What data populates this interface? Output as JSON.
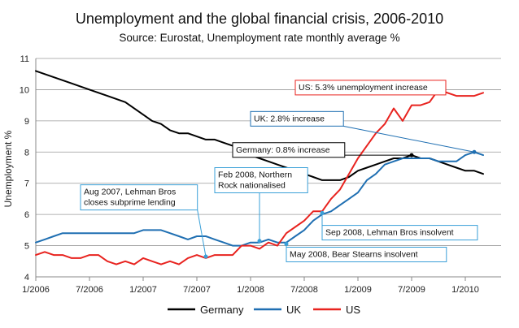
{
  "chart_data": {
    "type": "line",
    "title": "Unemployment and the global financial crisis, 2006-2010",
    "subtitle": "Source: Eurostat, Unemployment rate monthly average %",
    "xlabel": "",
    "ylabel": "Unemployment  %",
    "ylim": [
      4,
      11
    ],
    "yticks": [
      4,
      5,
      6,
      7,
      8,
      9,
      10,
      11
    ],
    "xlim": [
      "2006-01",
      "2010-05"
    ],
    "xticks": [
      "1/2006",
      "7/2006",
      "1/2007",
      "7/2007",
      "1/2008",
      "7/2008",
      "1/2009",
      "7/2009",
      "1/2010"
    ],
    "grid": "horizontal",
    "legend": "bottom",
    "series": [
      {
        "name": "Germany",
        "color": "#000000",
        "points": [
          [
            "2006-01",
            10.6
          ],
          [
            "2006-03",
            10.4
          ],
          [
            "2006-05",
            10.2
          ],
          [
            "2006-07",
            10.0
          ],
          [
            "2006-09",
            9.8
          ],
          [
            "2006-11",
            9.6
          ],
          [
            "2007-01",
            9.2
          ],
          [
            "2007-02",
            9.0
          ],
          [
            "2007-03",
            8.9
          ],
          [
            "2007-04",
            8.7
          ],
          [
            "2007-05",
            8.6
          ],
          [
            "2007-06",
            8.6
          ],
          [
            "2007-07",
            8.5
          ],
          [
            "2007-08",
            8.4
          ],
          [
            "2007-09",
            8.4
          ],
          [
            "2007-10",
            8.3
          ],
          [
            "2007-11",
            8.2
          ],
          [
            "2007-12",
            8.1
          ],
          [
            "2008-01",
            7.9
          ],
          [
            "2008-02",
            7.8
          ],
          [
            "2008-03",
            7.7
          ],
          [
            "2008-04",
            7.6
          ],
          [
            "2008-05",
            7.5
          ],
          [
            "2008-06",
            7.4
          ],
          [
            "2008-07",
            7.3
          ],
          [
            "2008-08",
            7.2
          ],
          [
            "2008-09",
            7.1
          ],
          [
            "2008-10",
            7.1
          ],
          [
            "2008-11",
            7.1
          ],
          [
            "2008-12",
            7.2
          ],
          [
            "2009-01",
            7.4
          ],
          [
            "2009-02",
            7.5
          ],
          [
            "2009-03",
            7.6
          ],
          [
            "2009-04",
            7.7
          ],
          [
            "2009-05",
            7.8
          ],
          [
            "2009-06",
            7.8
          ],
          [
            "2009-07",
            7.9
          ],
          [
            "2009-08",
            7.8
          ],
          [
            "2009-09",
            7.8
          ],
          [
            "2009-10",
            7.7
          ],
          [
            "2009-11",
            7.6
          ],
          [
            "2009-12",
            7.5
          ],
          [
            "2010-01",
            7.4
          ],
          [
            "2010-02",
            7.4
          ],
          [
            "2010-03",
            7.3
          ]
        ]
      },
      {
        "name": "UK",
        "color": "#1f6fb2",
        "points": [
          [
            "2006-01",
            5.1
          ],
          [
            "2006-02",
            5.2
          ],
          [
            "2006-03",
            5.3
          ],
          [
            "2006-04",
            5.4
          ],
          [
            "2006-05",
            5.4
          ],
          [
            "2006-07",
            5.4
          ],
          [
            "2006-09",
            5.4
          ],
          [
            "2006-11",
            5.4
          ],
          [
            "2006-12",
            5.4
          ],
          [
            "2007-01",
            5.5
          ],
          [
            "2007-03",
            5.5
          ],
          [
            "2007-04",
            5.4
          ],
          [
            "2007-05",
            5.3
          ],
          [
            "2007-06",
            5.2
          ],
          [
            "2007-07",
            5.3
          ],
          [
            "2007-08",
            5.3
          ],
          [
            "2007-09",
            5.2
          ],
          [
            "2007-10",
            5.1
          ],
          [
            "2007-11",
            5.0
          ],
          [
            "2007-12",
            5.0
          ],
          [
            "2008-01",
            5.1
          ],
          [
            "2008-02",
            5.1
          ],
          [
            "2008-03",
            5.2
          ],
          [
            "2008-04",
            5.1
          ],
          [
            "2008-05",
            5.1
          ],
          [
            "2008-06",
            5.3
          ],
          [
            "2008-07",
            5.5
          ],
          [
            "2008-08",
            5.8
          ],
          [
            "2008-09",
            6.0
          ],
          [
            "2008-10",
            6.1
          ],
          [
            "2008-11",
            6.3
          ],
          [
            "2008-12",
            6.5
          ],
          [
            "2009-01",
            6.7
          ],
          [
            "2009-02",
            7.1
          ],
          [
            "2009-03",
            7.3
          ],
          [
            "2009-04",
            7.6
          ],
          [
            "2009-05",
            7.7
          ],
          [
            "2009-06",
            7.8
          ],
          [
            "2009-07",
            7.8
          ],
          [
            "2009-08",
            7.8
          ],
          [
            "2009-09",
            7.8
          ],
          [
            "2009-10",
            7.7
          ],
          [
            "2009-11",
            7.7
          ],
          [
            "2009-12",
            7.7
          ],
          [
            "2010-01",
            7.9
          ],
          [
            "2010-02",
            8.0
          ],
          [
            "2010-03",
            7.9
          ]
        ]
      },
      {
        "name": "US",
        "color": "#e8231f",
        "points": [
          [
            "2006-01",
            4.7
          ],
          [
            "2006-02",
            4.8
          ],
          [
            "2006-03",
            4.7
          ],
          [
            "2006-04",
            4.7
          ],
          [
            "2006-05",
            4.6
          ],
          [
            "2006-06",
            4.6
          ],
          [
            "2006-07",
            4.7
          ],
          [
            "2006-08",
            4.7
          ],
          [
            "2006-09",
            4.5
          ],
          [
            "2006-10",
            4.4
          ],
          [
            "2006-11",
            4.5
          ],
          [
            "2006-12",
            4.4
          ],
          [
            "2007-01",
            4.6
          ],
          [
            "2007-02",
            4.5
          ],
          [
            "2007-03",
            4.4
          ],
          [
            "2007-04",
            4.5
          ],
          [
            "2007-05",
            4.4
          ],
          [
            "2007-06",
            4.6
          ],
          [
            "2007-07",
            4.7
          ],
          [
            "2007-08",
            4.6
          ],
          [
            "2007-09",
            4.7
          ],
          [
            "2007-10",
            4.7
          ],
          [
            "2007-11",
            4.7
          ],
          [
            "2007-12",
            5.0
          ],
          [
            "2008-01",
            5.0
          ],
          [
            "2008-02",
            4.9
          ],
          [
            "2008-03",
            5.1
          ],
          [
            "2008-04",
            5.0
          ],
          [
            "2008-05",
            5.4
          ],
          [
            "2008-06",
            5.6
          ],
          [
            "2008-07",
            5.8
          ],
          [
            "2008-08",
            6.1
          ],
          [
            "2008-09",
            6.1
          ],
          [
            "2008-10",
            6.5
          ],
          [
            "2008-11",
            6.8
          ],
          [
            "2008-12",
            7.3
          ],
          [
            "2009-01",
            7.8
          ],
          [
            "2009-02",
            8.2
          ],
          [
            "2009-03",
            8.6
          ],
          [
            "2009-04",
            8.9
          ],
          [
            "2009-05",
            9.4
          ],
          [
            "2009-06",
            9.0
          ],
          [
            "2009-07",
            9.5
          ],
          [
            "2009-08",
            9.5
          ],
          [
            "2009-09",
            9.6
          ],
          [
            "2009-10",
            10.0
          ],
          [
            "2009-11",
            9.9
          ],
          [
            "2009-12",
            9.8
          ],
          [
            "2010-01",
            9.8
          ],
          [
            "2010-02",
            9.8
          ],
          [
            "2010-03",
            9.9
          ]
        ]
      }
    ],
    "annotations": [
      {
        "lines": [
          "US: 5.3% unemployment increase"
        ],
        "point": [
          "2009-10",
          10.0
        ],
        "color": "#e8231f",
        "box_at": [
          "2008-06",
          10.3
        ]
      },
      {
        "lines": [
          "UK: 2.8%  increase"
        ],
        "point": [
          "2010-02",
          8.0
        ],
        "color": "#1f6fb2",
        "box_at": [
          "2008-01",
          9.3
        ]
      },
      {
        "lines": [
          "Germany: 0.8% increase"
        ],
        "point": [
          "2009-07",
          7.9
        ],
        "color": "#000000",
        "box_at": [
          "2007-11",
          8.3
        ]
      },
      {
        "lines": [
          "Feb 2008, Northern",
          "Rock nationalised"
        ],
        "point": [
          "2008-02",
          5.15
        ],
        "color": "#3aa0d8",
        "box_at": [
          "2007-09",
          7.5
        ]
      },
      {
        "lines": [
          "Aug 2007, Lehman Bros",
          "closes subprime lending"
        ],
        "point": [
          "2007-08",
          4.65
        ],
        "color": "#3aa0d8",
        "box_at": [
          "2006-06",
          6.95
        ]
      },
      {
        "lines": [
          "Sep 2008, Lehman Bros insolvent"
        ],
        "point": [
          "2008-09",
          6.05
        ],
        "color": "#3aa0d8",
        "box_at": [
          "2008-09",
          5.65
        ]
      },
      {
        "lines": [
          "May 2008, Bear Stearns insolvent"
        ],
        "point": [
          "2008-05",
          5.05
        ],
        "color": "#3aa0d8",
        "box_at": [
          "2008-05",
          4.95
        ]
      }
    ]
  }
}
